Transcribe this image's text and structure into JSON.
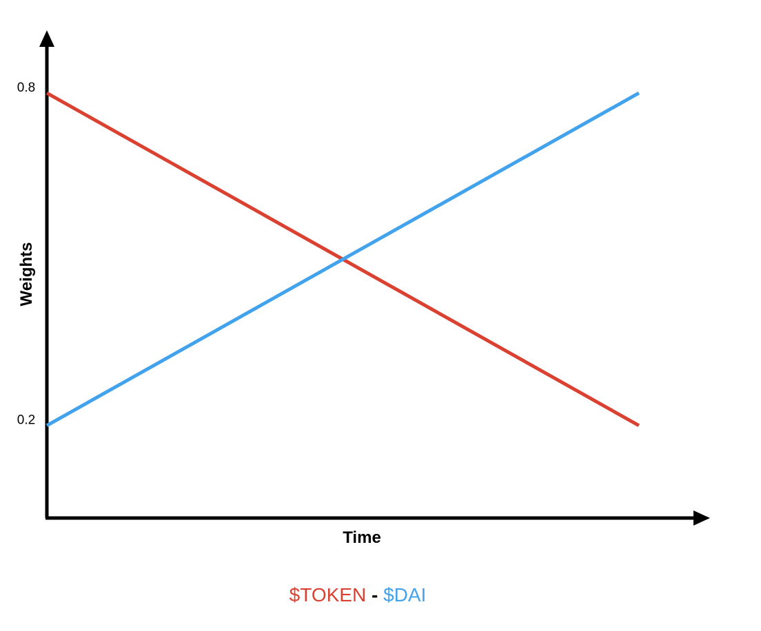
{
  "chart_data": {
    "type": "line",
    "title": "",
    "xlabel": "Time",
    "ylabel": "Weights",
    "x_ticks": [],
    "y_ticks": [
      {
        "value": 0.8,
        "label": "0.8"
      },
      {
        "value": 0.2,
        "label": "0.2"
      }
    ],
    "ylim": [
      0.033,
      0.968
    ],
    "xlim": [
      0,
      1.19
    ],
    "x": [
      0,
      1
    ],
    "series": [
      {
        "name": "$TOKEN",
        "color": "#db4130",
        "values": [
          0.8,
          0.2
        ]
      },
      {
        "name": "$DAI",
        "color": "#42a3ec",
        "values": [
          0.2,
          0.8
        ]
      }
    ],
    "legend": {
      "separator": "-",
      "placement": "bottom-center"
    },
    "grid": false
  }
}
